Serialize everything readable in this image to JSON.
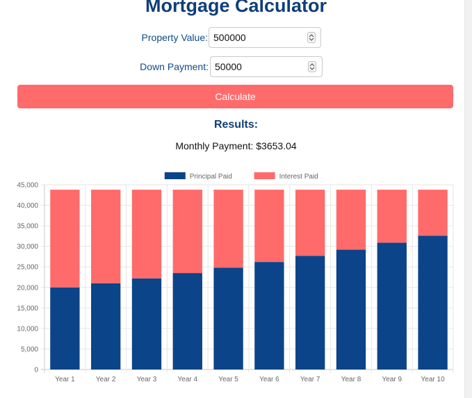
{
  "page": {
    "title": "Mortgage Calculator"
  },
  "form": {
    "property_value_label": "Property Value:",
    "property_value": "500000",
    "down_payment_label": "Down Payment:",
    "down_payment": "50000",
    "calculate_label": "Calculate"
  },
  "results": {
    "heading": "Results:",
    "monthly_payment_text": "Monthly Payment: $3653.04"
  },
  "colors": {
    "principal": "#0b4488",
    "interest": "#ff6b6b",
    "title": "#0f3e7a",
    "button": "#ff6b6b"
  },
  "chart_data": {
    "type": "bar",
    "stacked": true,
    "categories": [
      "Year 1",
      "Year 2",
      "Year 3",
      "Year 4",
      "Year 5",
      "Year 6",
      "Year 7",
      "Year 8",
      "Year 9",
      "Year 10"
    ],
    "series": [
      {
        "name": "Principal Paid",
        "color": "#0b4488",
        "values": [
          20000,
          21000,
          22200,
          23500,
          24800,
          26200,
          27700,
          29200,
          30900,
          32600
        ]
      },
      {
        "name": "Interest Paid",
        "color": "#ff6b6b",
        "values": [
          23800,
          22800,
          21600,
          20300,
          19000,
          17600,
          16100,
          14600,
          12900,
          11200
        ]
      }
    ],
    "ylim": [
      0,
      45000
    ],
    "yticks": [
      0,
      5000,
      10000,
      15000,
      20000,
      25000,
      30000,
      35000,
      40000,
      45000
    ],
    "ytick_labels": [
      "0",
      "5,000",
      "10,000",
      "15,000",
      "20,000",
      "25,000",
      "30,000",
      "35,000",
      "40,000",
      "45,000"
    ],
    "legend_position": "top-center",
    "grid": true
  }
}
